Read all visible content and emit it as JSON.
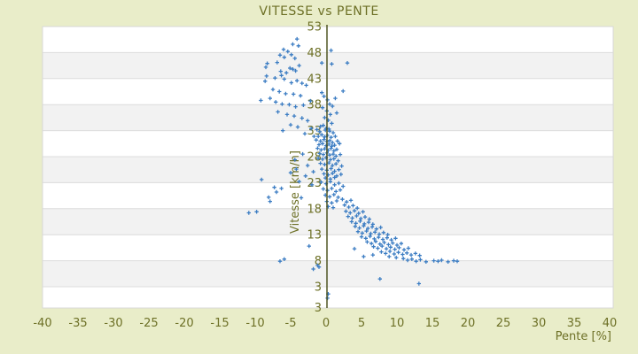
{
  "title": "VITESSE vs PENTE",
  "colors": {
    "background": "#e9edc9",
    "band_light": "#ffffff",
    "band_dark": "#f2f2f2",
    "gridline": "#dcdcdc",
    "plot_border": "#d8d8d8",
    "axis_line": "#454a15",
    "text": "#6d7026",
    "marker": "#3c7dc3"
  },
  "chart_data": {
    "type": "scatter",
    "title": "VITESSE vs PENTE",
    "xlabel": "Pente [%]",
    "ylabel": "Vitesse [km/h]",
    "legend": "none",
    "grid": "horizontal-bands",
    "marker": "plus",
    "xlim": [
      -40,
      40.5
    ],
    "ylim": [
      -1,
      53
    ],
    "x_ticks": [
      -40,
      -35,
      -30,
      -25,
      -20,
      -15,
      -10,
      -5,
      0,
      5,
      10,
      15,
      20,
      25,
      30,
      35,
      40
    ],
    "y_ticks": [
      53,
      48,
      43,
      38,
      33,
      28,
      23,
      18,
      13,
      8,
      3
    ],
    "y_axis_min_label": "3",
    "points": [
      [
        -4.1,
        50.6
      ],
      [
        -4.7,
        49.6
      ],
      [
        -3.9,
        49.3
      ],
      [
        -6.0,
        48.6
      ],
      [
        -5.4,
        48.2
      ],
      [
        -4.9,
        47.6
      ],
      [
        -6.5,
        47.5
      ],
      [
        -5.9,
        47.1
      ],
      [
        -4.4,
        46.9
      ],
      [
        -6.9,
        46.1
      ],
      [
        -8.3,
        45.9
      ],
      [
        -8.5,
        45.2
      ],
      [
        -3.8,
        45.5
      ],
      [
        -5.1,
        45.0
      ],
      [
        -4.7,
        44.8
      ],
      [
        -5.6,
        44.1
      ],
      [
        -4.3,
        44.5
      ],
      [
        -6.4,
        44.4
      ],
      [
        -8.4,
        43.5
      ],
      [
        -7.2,
        43.1
      ],
      [
        -6.3,
        43.6
      ],
      [
        -5.9,
        42.9
      ],
      [
        -8.6,
        42.5
      ],
      [
        -4.9,
        42.2
      ],
      [
        -4.1,
        42.6
      ],
      [
        -3.4,
        42.1
      ],
      [
        -2.8,
        41.7
      ],
      [
        -7.5,
        40.9
      ],
      [
        -6.6,
        40.5
      ],
      [
        -5.7,
        40.1
      ],
      [
        -4.6,
        40.0
      ],
      [
        -3.6,
        39.7
      ],
      [
        -9.2,
        38.8
      ],
      [
        -7.9,
        39.2
      ],
      [
        -7.1,
        38.5
      ],
      [
        -6.2,
        38.1
      ],
      [
        -5.2,
        38.0
      ],
      [
        -4.3,
        37.6
      ],
      [
        -3.2,
        37.9
      ],
      [
        -2.2,
        38.7
      ],
      [
        -6.8,
        36.6
      ],
      [
        -5.5,
        36.1
      ],
      [
        -4.5,
        35.8
      ],
      [
        -3.4,
        35.4
      ],
      [
        -2.6,
        34.9
      ],
      [
        -5.0,
        34.1
      ],
      [
        -4.0,
        33.7
      ],
      [
        -6.1,
        33.0
      ],
      [
        -2.1,
        33.4
      ],
      [
        -3.0,
        32.4
      ],
      [
        -1.7,
        31.9
      ],
      [
        -0.6,
        46.0
      ],
      [
        0.8,
        45.8
      ],
      [
        3.0,
        46.0
      ],
      [
        2.4,
        40.6
      ],
      [
        1.3,
        39.2
      ],
      [
        1.5,
        36.4
      ],
      [
        0.7,
        48.4
      ],
      [
        -0.3,
        39.6
      ],
      [
        0.2,
        38.9
      ],
      [
        0.5,
        38.1
      ],
      [
        -0.5,
        37.4
      ],
      [
        0.1,
        36.8
      ],
      [
        0.6,
        36.1
      ],
      [
        -0.2,
        35.5
      ],
      [
        0.3,
        35.0
      ],
      [
        0.8,
        34.4
      ],
      [
        -0.4,
        34.0
      ],
      [
        0.0,
        33.4
      ],
      [
        0.5,
        32.9
      ],
      [
        -0.8,
        33.8
      ],
      [
        -0.6,
        40.3
      ],
      [
        0.9,
        37.7
      ],
      [
        -10.9,
        17.2
      ],
      [
        -9.8,
        17.4
      ],
      [
        -9.1,
        23.6
      ],
      [
        -7.3,
        22.1
      ],
      [
        -7.0,
        21.2
      ],
      [
        -8.1,
        20.2
      ],
      [
        -7.9,
        19.4
      ],
      [
        -6.3,
        21.9
      ],
      [
        -5.0,
        24.9
      ],
      [
        -2.9,
        24.3
      ],
      [
        -2.0,
        22.6
      ],
      [
        -3.5,
        20.1
      ],
      [
        -4.4,
        27.4
      ],
      [
        -3.3,
        28.5
      ],
      [
        -2.6,
        26.3
      ],
      [
        -1.8,
        25.1
      ],
      [
        -4.2,
        25.6
      ],
      [
        -3.8,
        23.2
      ],
      [
        -6.5,
        7.9
      ],
      [
        -5.9,
        8.3
      ],
      [
        -2.4,
        10.8
      ],
      [
        -1.8,
        6.4
      ],
      [
        -1.2,
        7.1
      ],
      [
        -1.0,
        6.8
      ],
      [
        -1.3,
        33.2
      ],
      [
        -0.9,
        32.8
      ],
      [
        -0.1,
        33.1
      ],
      [
        0.4,
        33.3
      ],
      [
        1.0,
        32.6
      ],
      [
        -1.1,
        31.9
      ],
      [
        -0.6,
        32.2
      ],
      [
        -0.2,
        31.8
      ],
      [
        0.2,
        32.1
      ],
      [
        0.7,
        31.7
      ],
      [
        1.3,
        31.9
      ],
      [
        -1.4,
        31.2
      ],
      [
        -0.8,
        31.0
      ],
      [
        -0.3,
        31.3
      ],
      [
        0.1,
        30.9
      ],
      [
        0.5,
        31.1
      ],
      [
        0.9,
        30.7
      ],
      [
        1.6,
        31.0
      ],
      [
        -1.0,
        30.3
      ],
      [
        -0.5,
        30.5
      ],
      [
        0.0,
        30.1
      ],
      [
        0.4,
        30.4
      ],
      [
        0.8,
        30.0
      ],
      [
        1.2,
        30.2
      ],
      [
        1.9,
        30.5
      ],
      [
        -1.2,
        29.6
      ],
      [
        -0.7,
        29.3
      ],
      [
        -0.2,
        29.5
      ],
      [
        0.3,
        29.2
      ],
      [
        0.7,
        29.6
      ],
      [
        1.1,
        29.1
      ],
      [
        1.5,
        29.4
      ],
      [
        -0.9,
        28.6
      ],
      [
        -0.4,
        28.4
      ],
      [
        0.1,
        28.7
      ],
      [
        0.5,
        28.3
      ],
      [
        1.0,
        28.5
      ],
      [
        1.4,
        28.1
      ],
      [
        2.0,
        28.4
      ],
      [
        -1.1,
        27.7
      ],
      [
        -0.5,
        27.5
      ],
      [
        0.0,
        27.8
      ],
      [
        0.6,
        27.4
      ],
      [
        1.1,
        27.6
      ],
      [
        1.7,
        27.2
      ],
      [
        -0.8,
        26.7
      ],
      [
        -0.2,
        26.5
      ],
      [
        0.4,
        26.8
      ],
      [
        0.9,
        26.3
      ],
      [
        1.4,
        26.6
      ],
      [
        2.2,
        26.2
      ],
      [
        -0.6,
        25.6
      ],
      [
        0.1,
        25.4
      ],
      [
        0.7,
        25.7
      ],
      [
        1.2,
        25.2
      ],
      [
        1.8,
        25.5
      ],
      [
        -0.3,
        24.7
      ],
      [
        0.3,
        24.5
      ],
      [
        0.9,
        24.8
      ],
      [
        1.5,
        24.3
      ],
      [
        2.1,
        24.6
      ],
      [
        -0.1,
        23.9
      ],
      [
        0.6,
        23.7
      ],
      [
        1.2,
        24.0
      ],
      [
        -0.7,
        23.1
      ],
      [
        0.0,
        22.8
      ],
      [
        0.6,
        23.2
      ],
      [
        1.2,
        22.6
      ],
      [
        1.8,
        22.9
      ],
      [
        2.4,
        22.3
      ],
      [
        -0.4,
        21.8
      ],
      [
        0.2,
        21.5
      ],
      [
        0.8,
        21.9
      ],
      [
        1.4,
        21.3
      ],
      [
        2.0,
        21.6
      ],
      [
        -0.1,
        20.6
      ],
      [
        0.5,
        20.3
      ],
      [
        1.1,
        20.7
      ],
      [
        1.7,
        20.2
      ],
      [
        0.1,
        19.4
      ],
      [
        0.8,
        19.1
      ],
      [
        1.5,
        19.5
      ],
      [
        0.3,
        18.4
      ],
      [
        1.0,
        18.2
      ],
      [
        2.3,
        19.8
      ],
      [
        2.9,
        19.3
      ],
      [
        3.5,
        19.6
      ],
      [
        2.6,
        18.7
      ],
      [
        3.2,
        18.3
      ],
      [
        3.8,
        18.6
      ],
      [
        4.4,
        18.1
      ],
      [
        2.8,
        17.5
      ],
      [
        3.4,
        17.2
      ],
      [
        4.0,
        17.6
      ],
      [
        4.6,
        17.1
      ],
      [
        5.2,
        17.4
      ],
      [
        3.1,
        16.5
      ],
      [
        3.7,
        16.2
      ],
      [
        4.3,
        16.6
      ],
      [
        4.9,
        16.1
      ],
      [
        5.5,
        16.4
      ],
      [
        6.1,
        16.0
      ],
      [
        3.6,
        15.5
      ],
      [
        4.2,
        15.2
      ],
      [
        4.8,
        15.6
      ],
      [
        5.4,
        15.1
      ],
      [
        6.0,
        15.4
      ],
      [
        6.6,
        15.0
      ],
      [
        4.1,
        14.6
      ],
      [
        4.7,
        14.3
      ],
      [
        5.3,
        14.7
      ],
      [
        5.9,
        14.2
      ],
      [
        6.5,
        14.5
      ],
      [
        7.1,
        14.1
      ],
      [
        7.7,
        14.4
      ],
      [
        4.5,
        13.6
      ],
      [
        5.1,
        13.3
      ],
      [
        5.7,
        13.7
      ],
      [
        6.3,
        13.2
      ],
      [
        6.9,
        13.5
      ],
      [
        7.5,
        13.1
      ],
      [
        8.1,
        13.4
      ],
      [
        8.7,
        13.0
      ],
      [
        5.0,
        12.6
      ],
      [
        5.6,
        12.3
      ],
      [
        6.2,
        12.7
      ],
      [
        6.8,
        12.2
      ],
      [
        7.4,
        12.5
      ],
      [
        8.0,
        12.1
      ],
      [
        8.6,
        12.4
      ],
      [
        9.2,
        12.0
      ],
      [
        9.8,
        12.3
      ],
      [
        5.8,
        11.6
      ],
      [
        6.4,
        11.3
      ],
      [
        7.0,
        11.7
      ],
      [
        7.6,
        11.2
      ],
      [
        8.2,
        11.5
      ],
      [
        8.8,
        11.1
      ],
      [
        9.4,
        11.4
      ],
      [
        10.0,
        11.0
      ],
      [
        10.6,
        11.3
      ],
      [
        6.7,
        10.7
      ],
      [
        7.3,
        10.4
      ],
      [
        7.9,
        10.8
      ],
      [
        8.5,
        10.3
      ],
      [
        9.1,
        10.6
      ],
      [
        9.7,
        10.2
      ],
      [
        10.3,
        10.5
      ],
      [
        11.0,
        10.1
      ],
      [
        11.6,
        10.4
      ],
      [
        7.8,
        9.7
      ],
      [
        8.4,
        9.4
      ],
      [
        9.0,
        9.8
      ],
      [
        9.6,
        9.3
      ],
      [
        10.2,
        9.6
      ],
      [
        10.8,
        9.2
      ],
      [
        11.4,
        9.5
      ],
      [
        12.0,
        9.1
      ],
      [
        12.6,
        9.4
      ],
      [
        13.2,
        9.0
      ],
      [
        10.9,
        8.4
      ],
      [
        11.5,
        8.1
      ],
      [
        12.1,
        8.3
      ],
      [
        12.7,
        7.9
      ],
      [
        13.3,
        8.2
      ],
      [
        14.1,
        7.8
      ],
      [
        15.2,
        8.0
      ],
      [
        15.8,
        7.9
      ],
      [
        16.3,
        8.1
      ],
      [
        17.2,
        7.8
      ],
      [
        18.0,
        8.0
      ],
      [
        18.5,
        7.9
      ],
      [
        9.9,
        8.6
      ],
      [
        8.9,
        8.8
      ],
      [
        6.6,
        9.1
      ],
      [
        5.3,
        8.8
      ],
      [
        4.0,
        10.3
      ],
      [
        13.1,
        3.6
      ],
      [
        7.6,
        4.5
      ],
      [
        0.3,
        1.6
      ],
      [
        0.2,
        0.8
      ]
    ]
  }
}
